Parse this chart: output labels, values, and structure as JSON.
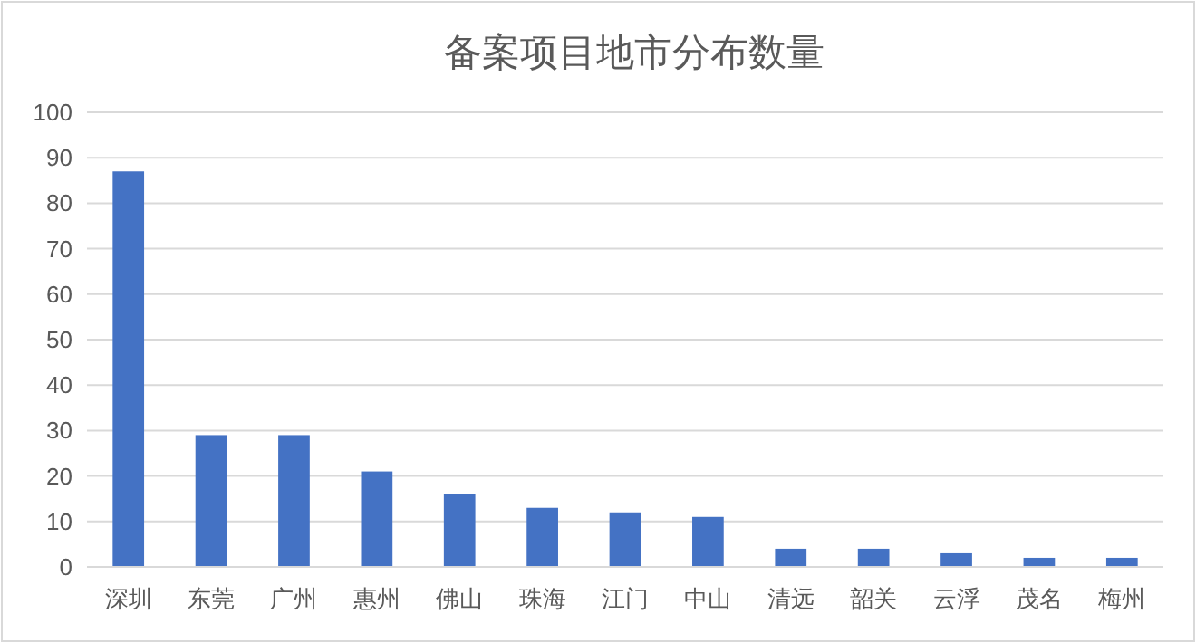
{
  "chart_data": {
    "type": "bar",
    "title": "备案项目地市分布数量",
    "categories": [
      "深圳",
      "东莞",
      "广州",
      "惠州",
      "佛山",
      "珠海",
      "江门",
      "中山",
      "清远",
      "韶关",
      "云浮",
      "茂名",
      "梅州"
    ],
    "values": [
      87,
      29,
      29,
      21,
      16,
      13,
      12,
      11,
      4,
      4,
      3,
      2,
      2
    ],
    "color": "#4472c4",
    "ylim": [
      0,
      100
    ],
    "yticks": [
      0,
      10,
      20,
      30,
      40,
      50,
      60,
      70,
      80,
      90,
      100
    ],
    "grid": "y"
  }
}
